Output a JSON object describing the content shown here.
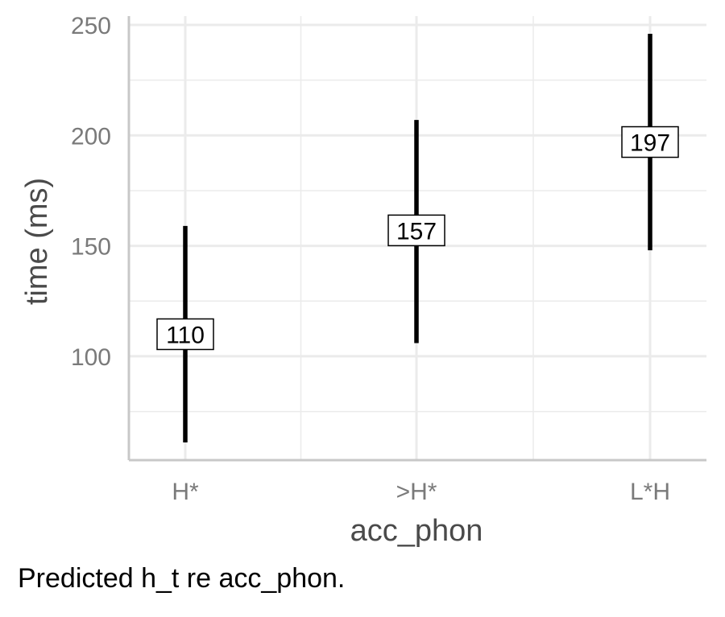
{
  "chart_data": {
    "type": "errorbar",
    "categories": [
      "H*",
      ">H*",
      "L*H"
    ],
    "values": [
      110,
      157,
      197
    ],
    "lower": [
      61,
      106,
      148
    ],
    "upper": [
      159,
      207,
      246
    ],
    "value_labels": [
      "110",
      "157",
      "197"
    ],
    "xlabel": "acc_phon",
    "ylabel": "time (ms)",
    "yticks": [
      100,
      150,
      200,
      250
    ],
    "ylim": [
      53,
      254
    ],
    "grid": true,
    "legend": "none"
  },
  "caption": "Predicted h_t re acc_phon.",
  "colors": {
    "bar": "#000000",
    "grid": "#ebebeb",
    "axis": "#c8c8c8",
    "tick_text": "#7a7a7a",
    "title_text": "#4a4a4a",
    "label_bg": "#ffffff"
  }
}
